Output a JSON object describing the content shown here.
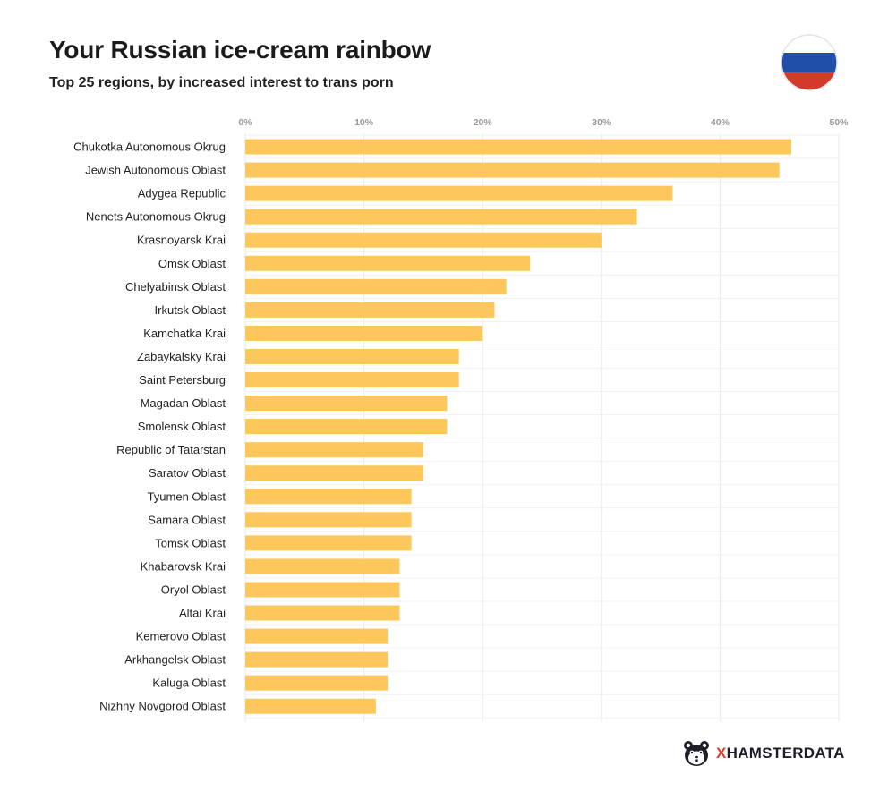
{
  "chart_data": {
    "type": "bar",
    "orientation": "horizontal",
    "title": "Your Russian ice-cream rainbow",
    "subtitle": "Top 25 regions, by increased interest to trans porn",
    "xlim": [
      0,
      50
    ],
    "ticks": [
      0,
      10,
      20,
      30,
      40,
      50
    ],
    "tick_labels": [
      "0%",
      "10%",
      "20%",
      "30%",
      "40%",
      "50%"
    ],
    "tick_position": "top",
    "grid": true,
    "bar_color": "#fdc75c",
    "grid_color": "#e8e8e8",
    "categories": [
      "Chukotka Autonomous Okrug",
      "Jewish Autonomous Oblast",
      "Adygea Republic",
      "Nenets Autonomous Okrug",
      "Krasnoyarsk Krai",
      "Omsk Oblast",
      "Chelyabinsk Oblast",
      "Irkutsk Oblast",
      "Kamchatka Krai",
      "Zabaykalsky Krai",
      "Saint Petersburg",
      "Magadan Oblast",
      "Smolensk Oblast",
      "Republic of Tatarstan",
      "Saratov Oblast",
      "Tyumen Oblast",
      "Samara Oblast",
      "Tomsk Oblast",
      "Khabarovsk Krai",
      "Oryol Oblast",
      "Altai Krai",
      "Kemerovo Oblast",
      "Arkhangelsk Oblast",
      "Kaluga Oblast",
      "Nizhny Novgorod Oblast"
    ],
    "values": [
      46,
      45,
      36,
      33,
      30,
      24,
      22,
      21,
      20,
      18,
      18,
      17,
      17,
      15,
      15,
      14,
      14,
      14,
      13,
      13,
      13,
      12,
      12,
      12,
      11
    ]
  },
  "flag": {
    "icon": "russia-flag-icon",
    "colors": [
      "#ffffff",
      "#1f4fa8",
      "#d43a2c"
    ]
  },
  "brand": {
    "icon": "hamster-logo-icon",
    "name_x": "X",
    "name_rest": "HAMSTERDATA",
    "accent_color": "#e33a2a"
  }
}
